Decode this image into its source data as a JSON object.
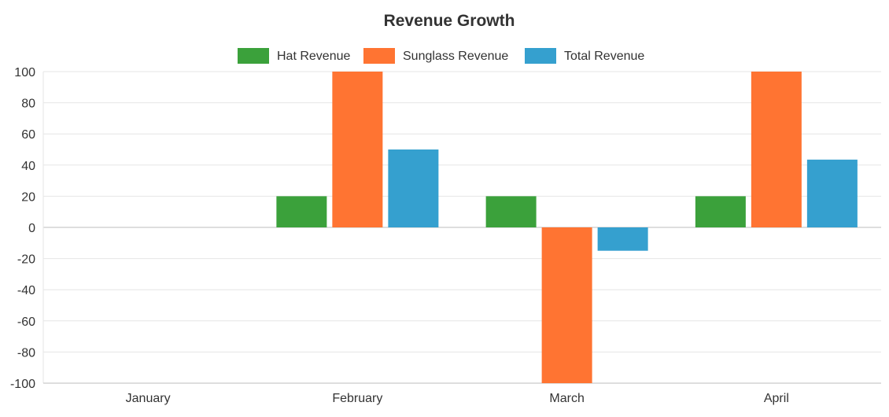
{
  "chart_data": {
    "type": "bar",
    "title": "Revenue Growth",
    "xlabel": "",
    "ylabel": "",
    "categories": [
      "January",
      "February",
      "March",
      "April"
    ],
    "series": [
      {
        "name": "Hat Revenue",
        "color": "#3ba13b",
        "values": [
          0,
          20,
          20,
          20
        ]
      },
      {
        "name": "Sunglass Revenue",
        "color": "#ff7432",
        "values": [
          0,
          100,
          -100,
          100
        ]
      },
      {
        "name": "Total Revenue",
        "color": "#35a0cf",
        "values": [
          0,
          50,
          -15,
          43.5
        ]
      }
    ],
    "ylim": [
      -100,
      100
    ],
    "yticks": [
      "100",
      "80",
      "60",
      "40",
      "20",
      "0",
      "-20",
      "-40",
      "-60",
      "-80",
      "-100"
    ],
    "grid": true,
    "legend_position": "top-center"
  }
}
